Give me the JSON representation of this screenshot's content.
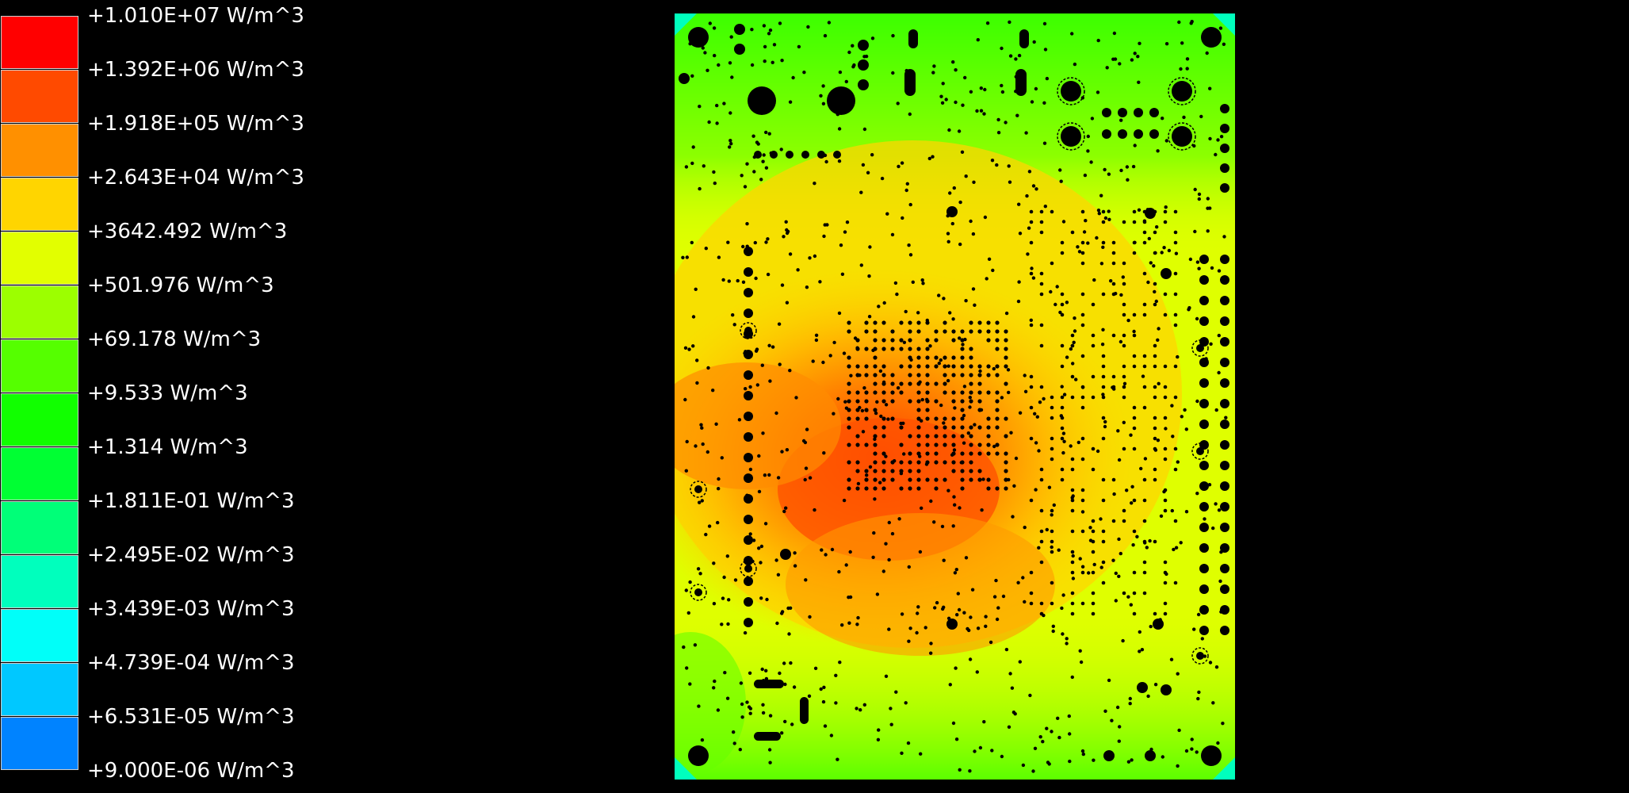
{
  "legend": {
    "items": [
      {
        "label": "+1.010E+07 W/m^3",
        "color": "#ff0000"
      },
      {
        "label": "+1.392E+06 W/m^3",
        "color": "#ff4a00"
      },
      {
        "label": "+1.918E+05 W/m^3",
        "color": "#ff9000"
      },
      {
        "label": "+2.643E+04 W/m^3",
        "color": "#ffd500"
      },
      {
        "label": "+3642.492 W/m^3",
        "color": "#e2ff00"
      },
      {
        "label": "+501.976 W/m^3",
        "color": "#9cff00"
      },
      {
        "label": "+69.178 W/m^3",
        "color": "#55ff00"
      },
      {
        "label": "+9.533 W/m^3",
        "color": "#11ff00"
      },
      {
        "label": "+1.314 W/m^3",
        "color": "#00ff33"
      },
      {
        "label": "+1.811E-01 W/m^3",
        "color": "#00ff78"
      },
      {
        "label": "+2.495E-02 W/m^3",
        "color": "#00ffbd"
      },
      {
        "label": "+3.439E-03 W/m^3",
        "color": "#00fff9"
      },
      {
        "label": "+4.739E-04 W/m^3",
        "color": "#00c8ff"
      },
      {
        "label": "+6.531E-05 W/m^3",
        "color": "#0083ff"
      },
      {
        "label": "+9.000E-06 W/m^3",
        "color": "#003fff"
      }
    ],
    "last_label": "+9.000E-06 W/m^3"
  },
  "board": {
    "background_color": "#dfff00",
    "hotspot_color": "#ff5200",
    "hole_color": "#000000"
  }
}
